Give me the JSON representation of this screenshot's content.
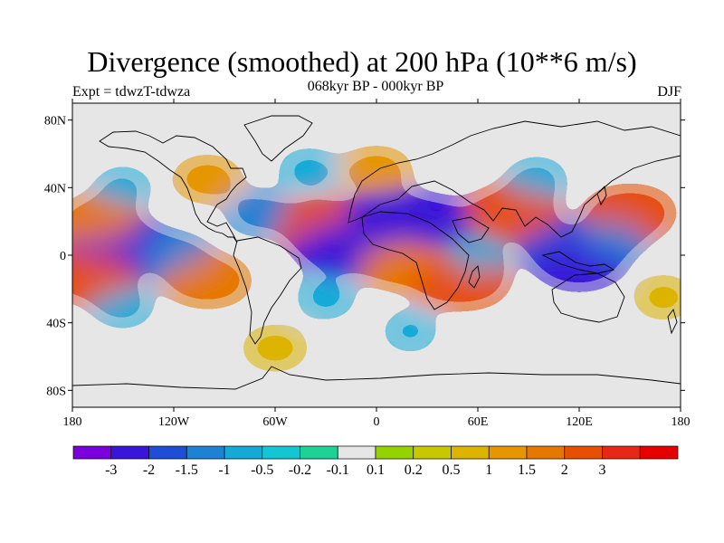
{
  "title": "Divergence (smoothed) at 200 hPa (10**6 m/s)",
  "subtitle": "068kyr BP - 000kyr BP",
  "left_label": "Expt = tdwzT-tdwza",
  "right_label": "DJF",
  "lat_labels": [
    "80N",
    "40N",
    "0",
    "40S",
    "80S"
  ],
  "lon_labels": [
    "180",
    "120W",
    "60W",
    "0",
    "60E",
    "120E",
    "180"
  ],
  "colorbar": {
    "colors": [
      "#7a00dc",
      "#3a14d8",
      "#1e4ed6",
      "#1e82d4",
      "#14aad8",
      "#14c6d2",
      "#1ed296",
      "#e6e6e6",
      "#96d200",
      "#c8c800",
      "#dcb400",
      "#e69600",
      "#e67800",
      "#e65000",
      "#e62814",
      "#e60000"
    ],
    "labels": [
      "-3",
      "-2",
      "-1.5",
      "-1",
      "-0.5",
      "-0.2",
      "-0.1",
      "0.1",
      "0.2",
      "0.5",
      "1",
      "1.5",
      "2",
      "3"
    ]
  },
  "chart_data": {
    "type": "heatmap",
    "title": "Divergence (smoothed) at 200 hPa (10**6 m/s)",
    "subtitle": "068kyr BP - 000kyr BP",
    "experiment": "Expt = tdwzT-tdwza",
    "season": "DJF",
    "units": "10**6 m/s",
    "xlim": [
      -180,
      180
    ],
    "ylim": [
      -90,
      90
    ],
    "contour_levels": [
      -3,
      -2,
      -1.5,
      -1,
      -0.5,
      -0.2,
      -0.1,
      0.1,
      0.2,
      0.5,
      1,
      1.5,
      2,
      3
    ],
    "features": [
      {
        "lon": -150,
        "lat": 5,
        "value": -2.5
      },
      {
        "lon": -120,
        "lat": 0,
        "value": -1.2
      },
      {
        "lon": -170,
        "lat": -12,
        "value": 2.2
      },
      {
        "lon": -165,
        "lat": 20,
        "value": 1.8
      },
      {
        "lon": -150,
        "lat": -30,
        "value": -0.8
      },
      {
        "lon": -100,
        "lat": -15,
        "value": 2.0
      },
      {
        "lon": -100,
        "lat": 45,
        "value": 1.2
      },
      {
        "lon": -150,
        "lat": 40,
        "value": -0.6
      },
      {
        "lon": -70,
        "lat": 25,
        "value": -1.0
      },
      {
        "lon": -30,
        "lat": 18,
        "value": 2.5
      },
      {
        "lon": -20,
        "lat": 5,
        "value": -2.5
      },
      {
        "lon": -40,
        "lat": 50,
        "value": -0.8
      },
      {
        "lon": 10,
        "lat": 22,
        "value": -2.5
      },
      {
        "lon": 30,
        "lat": 20,
        "value": -2.0
      },
      {
        "lon": 15,
        "lat": -5,
        "value": 2.0
      },
      {
        "lon": 50,
        "lat": -15,
        "value": 2.5
      },
      {
        "lon": 60,
        "lat": 0,
        "value": -0.8
      },
      {
        "lon": 80,
        "lat": 25,
        "value": 2.3
      },
      {
        "lon": 110,
        "lat": 5,
        "value": -1.8
      },
      {
        "lon": 120,
        "lat": -5,
        "value": -2.0
      },
      {
        "lon": 150,
        "lat": 25,
        "value": 2.2
      },
      {
        "lon": 140,
        "lat": 10,
        "value": -1.0
      },
      {
        "lon": 95,
        "lat": 45,
        "value": -0.8
      },
      {
        "lon": 0,
        "lat": 50,
        "value": 1.3
      },
      {
        "lon": -30,
        "lat": -25,
        "value": -0.7
      },
      {
        "lon": 20,
        "lat": -45,
        "value": -0.5
      },
      {
        "lon": 170,
        "lat": -25,
        "value": 0.8
      },
      {
        "lon": -60,
        "lat": -55,
        "value": 1.0
      }
    ]
  }
}
